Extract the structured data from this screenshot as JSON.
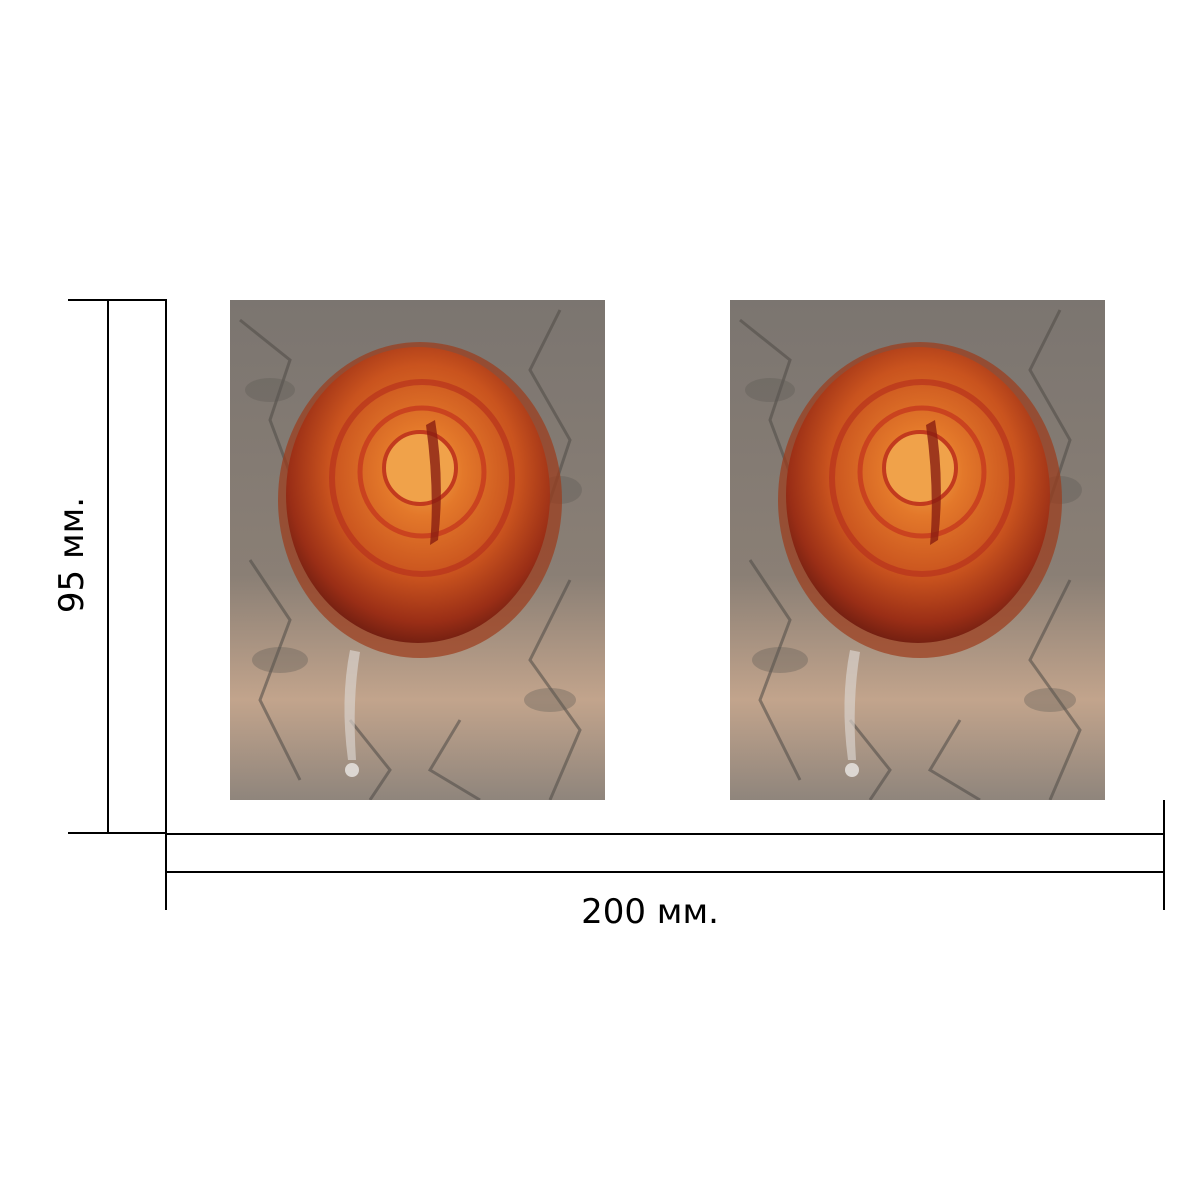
{
  "dimensions": {
    "width_label": "200 мм.",
    "height_label": "95 мм."
  },
  "images": [
    {
      "subject": "tree-bark-knot-with-resin-photo"
    },
    {
      "subject": "tree-bark-knot-with-resin-photo"
    }
  ],
  "colors": {
    "background": "#ffffff",
    "lines": "#000000",
    "bark_dark": "#6f6b66",
    "bark_light": "#c9b8a7",
    "knot_outer": "#b3451c",
    "knot_inner": "#e07a2c",
    "knot_core": "#f0a24a",
    "resin": "#8a1e12"
  }
}
